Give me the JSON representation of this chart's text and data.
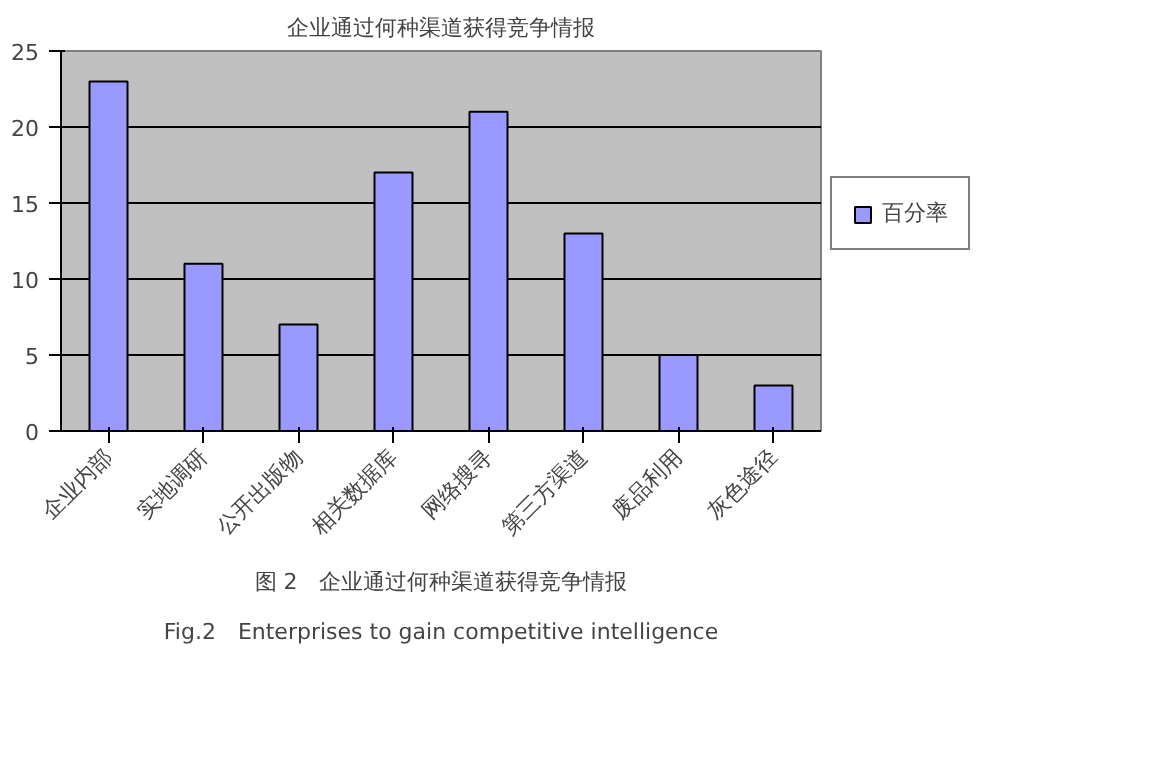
{
  "chart_data": {
    "type": "bar",
    "title": "企业通过何种渠道获得竞争情报",
    "categories": [
      "企业内部",
      "实地调研",
      "公开出版物",
      "相关数据库",
      "网络搜寻",
      "第三方渠道",
      "废品利用",
      "灰色途径"
    ],
    "series": [
      {
        "name": "百分率",
        "color": "#9999ff",
        "values": [
          23,
          11,
          7,
          17,
          21,
          13,
          5,
          3
        ]
      }
    ],
    "ylim": [
      0,
      25
    ],
    "yticks": [
      0,
      5,
      10,
      15,
      20,
      25
    ],
    "grid": "y",
    "legend": "right",
    "annotations": [
      "图 2　企业通过何种渠道获得竞争情报",
      "Fig.2　Enterprises to gain competitive intelligence"
    ]
  }
}
